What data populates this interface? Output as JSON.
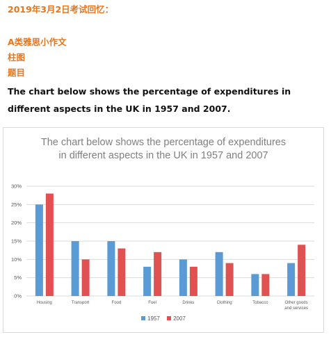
{
  "intro": {
    "exam_date": "2019年3月2日考试回忆：",
    "category": "A类雅思小作文",
    "chart_kind": "柱图",
    "topic_label": "题目",
    "task": "The chart below shows the percentage of expenditures in different aspects in the UK in 1957 and 2007."
  },
  "chart_data": {
    "type": "bar",
    "title_lines": [
      "The chart below shows the percentage of expenditures",
      "in different aspects in the UK in 1957 and 2007"
    ],
    "categories": [
      "Housing",
      "Transport",
      "Food",
      "Fuel",
      "Drinks",
      "Clothing",
      "Tobacco",
      "Other goods and services"
    ],
    "category_label_lines": [
      [
        "Housing"
      ],
      [
        "Transport"
      ],
      [
        "Food"
      ],
      [
        "Fuel"
      ],
      [
        "Drinks"
      ],
      [
        "Clothing"
      ],
      [
        "Tobacco"
      ],
      [
        "Other goods",
        "and services"
      ]
    ],
    "series": [
      {
        "name": "1957",
        "color": "#5b9bd5",
        "values": [
          25,
          15,
          15,
          8,
          10,
          12,
          6,
          9
        ]
      },
      {
        "name": "2007",
        "color": "#e05252",
        "values": [
          28,
          10,
          13,
          12,
          8,
          9,
          6,
          14
        ]
      }
    ],
    "ylim": [
      0,
      30
    ],
    "y_ticks": [
      "0%",
      "5%",
      "10%",
      "15%",
      "20%",
      "25%",
      "30%"
    ],
    "y_tick_values": [
      0,
      5,
      10,
      15,
      20,
      25,
      30
    ],
    "grid": true,
    "legend_position": "bottom",
    "xlabel": "",
    "ylabel": ""
  }
}
